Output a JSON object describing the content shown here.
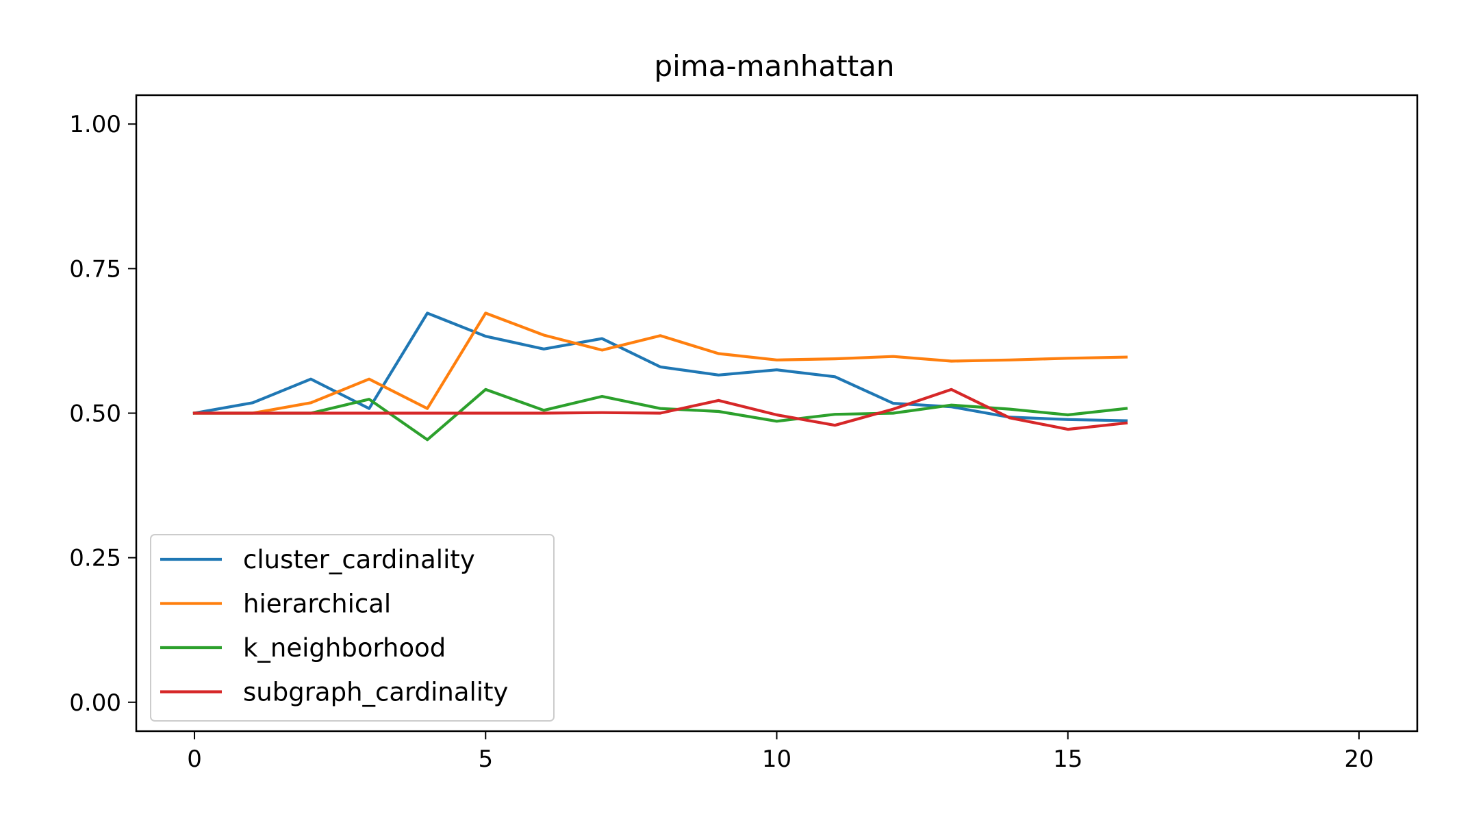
{
  "chart_data": {
    "type": "line",
    "title": "pima-manhattan",
    "xlabel": "",
    "ylabel": "",
    "xlim": [
      -1,
      21
    ],
    "ylim": [
      -0.05,
      1.05
    ],
    "xticks": [
      0,
      5,
      10,
      15,
      20
    ],
    "xtick_labels": [
      "0",
      "5",
      "10",
      "15",
      "20"
    ],
    "yticks": [
      0.0,
      0.25,
      0.5,
      0.75,
      1.0
    ],
    "ytick_labels": [
      "0.00",
      "0.25",
      "0.50",
      "0.75",
      "1.00"
    ],
    "grid": false,
    "legend_position": "lower-left",
    "x": [
      0,
      1,
      2,
      3,
      4,
      5,
      6,
      7,
      8,
      9,
      10,
      11,
      12,
      13,
      14,
      15,
      16
    ],
    "series": [
      {
        "name": "cluster_cardinality",
        "color": "#1f77b4",
        "values": [
          0.5,
          0.518,
          0.559,
          0.508,
          0.673,
          0.633,
          0.611,
          0.629,
          0.58,
          0.566,
          0.575,
          0.563,
          0.517,
          0.511,
          0.493,
          0.489,
          0.487
        ]
      },
      {
        "name": "hierarchical",
        "color": "#ff7f0e",
        "values": [
          0.5,
          0.5,
          0.518,
          0.559,
          0.508,
          0.673,
          0.635,
          0.609,
          0.634,
          0.603,
          0.592,
          0.594,
          0.598,
          0.59,
          0.592,
          0.595,
          0.597
        ]
      },
      {
        "name": "k_neighborhood",
        "color": "#2ca02c",
        "values": [
          0.5,
          0.5,
          0.5,
          0.524,
          0.454,
          0.541,
          0.505,
          0.529,
          0.508,
          0.503,
          0.486,
          0.498,
          0.5,
          0.514,
          0.507,
          0.497,
          0.508
        ]
      },
      {
        "name": "subgraph_cardinality",
        "color": "#d62728",
        "values": [
          0.5,
          0.5,
          0.5,
          0.5,
          0.5,
          0.5,
          0.5,
          0.501,
          0.5,
          0.522,
          0.497,
          0.479,
          0.507,
          0.541,
          0.492,
          0.472,
          0.483
        ]
      }
    ]
  }
}
